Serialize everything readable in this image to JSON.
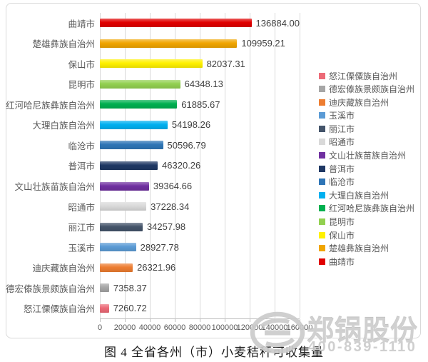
{
  "chart_data": {
    "type": "bar",
    "orientation": "horizontal",
    "title": "图 4 全省各州（市）小麦秸秆可收集量",
    "categories": [
      "曲靖市",
      "楚雄彝族自治州",
      "保山市",
      "昆明市",
      "红河哈尼族彝族自治州",
      "大理白族自治州",
      "临沧市",
      "普洱市",
      "文山壮族苗族自治州",
      "昭通市",
      "丽江市",
      "玉溪市",
      "迪庆藏族自治州",
      "德宏傣族景颇族自治州",
      "怒江傈僳族自治州"
    ],
    "values": [
      136884.0,
      109959.21,
      82037.31,
      64348.13,
      61885.67,
      54198.26,
      50596.79,
      46320.26,
      39364.66,
      37228.34,
      34257.98,
      28927.78,
      26321.96,
      7358.37,
      7260.72
    ],
    "value_labels": [
      "136884.00",
      "109959.21",
      "82037.31",
      "64348.13",
      "61885.67",
      "54198.26",
      "50596.79",
      "46320.26",
      "39364.66",
      "37228.34",
      "34257.98",
      "28927.78",
      "26321.96",
      "7358.37",
      "7260.72"
    ],
    "bar_colors": [
      "#E00000",
      "#F0A500",
      "#FFF100",
      "#92D050",
      "#00B050",
      "#00B0F0",
      "#2E75B6",
      "#1F3864",
      "#7030A0",
      "#D9D9D9",
      "#44546A",
      "#5B9BD5",
      "#ED7D31",
      "#A6A6A6",
      "#EC6A77"
    ],
    "xlim": [
      0,
      160000
    ],
    "x_ticks": [
      "0",
      "20000",
      "40000",
      "60000",
      "80000",
      "100000",
      "120000",
      "140000",
      "160000"
    ],
    "grid": true,
    "legend_position": "right",
    "legend": [
      {
        "label": "怒江傈僳族自治州",
        "color": "#EC6A77"
      },
      {
        "label": "德宏傣族景颇族自治州",
        "color": "#A6A6A6"
      },
      {
        "label": "迪庆藏族自治州",
        "color": "#ED7D31"
      },
      {
        "label": "玉溪市",
        "color": "#5B9BD5"
      },
      {
        "label": "丽江市",
        "color": "#44546A"
      },
      {
        "label": "昭通市",
        "color": "#D9D9D9"
      },
      {
        "label": "文山壮族苗族自治州",
        "color": "#7030A0"
      },
      {
        "label": "普洱市",
        "color": "#1F3864"
      },
      {
        "label": "临沧市",
        "color": "#2E75B6"
      },
      {
        "label": "大理白族自治州",
        "color": "#00B0F0"
      },
      {
        "label": "红河哈尼族彝族自治州",
        "color": "#00B050"
      },
      {
        "label": "昆明市",
        "color": "#92D050"
      },
      {
        "label": "保山市",
        "color": "#FFF100"
      },
      {
        "label": "楚雄彝族自治州",
        "color": "#F0A500"
      },
      {
        "label": "曲靖市",
        "color": "#E00000"
      }
    ]
  },
  "watermark": {
    "brand": "郑锅股份",
    "phone": "400-839-1110"
  },
  "theme": {
    "grid_color": "#D9D9D9",
    "axis_color": "#BFBFBF",
    "label_color": "#595959",
    "value_color": "#404040",
    "frame_color": "#D9D9D9",
    "watermark_color": "#CBCBCB"
  }
}
